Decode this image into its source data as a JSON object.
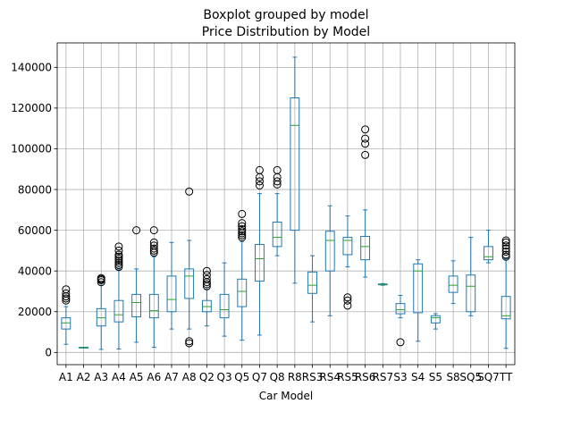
{
  "chart_data": {
    "type": "boxplot",
    "title": "Boxplot grouped by model",
    "subtitle": "Price Distribution by Model",
    "xlabel": "Car Model",
    "ylabel": "",
    "ylim": [
      -6000,
      152000
    ],
    "yticks": [
      0,
      20000,
      40000,
      60000,
      80000,
      100000,
      120000,
      140000
    ],
    "ytick_labels": [
      "0",
      "20000",
      "40000",
      "60000",
      "80000",
      "100000",
      "120000",
      "140000"
    ],
    "grid": true,
    "colors": {
      "box": "#1f77b4",
      "median": "#2ca02c",
      "grid": "#b0b0b0"
    },
    "categories": [
      "A1",
      "A2",
      "A3",
      "A4",
      "A5",
      "A6",
      "A7",
      "A8",
      "Q2",
      "Q3",
      "Q5",
      "Q7",
      "Q8",
      "R8",
      "RS3",
      "RS4",
      "RS5",
      "RS6",
      "RS7",
      "S3",
      "S4",
      "S5",
      "S8",
      "SQ5",
      "SQ7",
      "TT"
    ],
    "boxes": [
      {
        "label": "A1",
        "whislo": 4000,
        "q1": 11500,
        "med": 14500,
        "q3": 17000,
        "whishi": 22500,
        "fliers": [
          25500,
          26500,
          27500,
          29000,
          31000
        ]
      },
      {
        "label": "A2",
        "whislo": 2400,
        "q1": 2450,
        "med": 2490,
        "q3": 2500,
        "whishi": 2550,
        "fliers": []
      },
      {
        "label": "A3",
        "whislo": 1500,
        "q1": 13000,
        "med": 17000,
        "q3": 21500,
        "whishi": 33000,
        "fliers": [
          34500,
          35500,
          36000,
          36500
        ]
      },
      {
        "label": "A4",
        "whislo": 1700,
        "q1": 15000,
        "med": 18500,
        "q3": 25500,
        "whishi": 41000,
        "fliers": [
          42000,
          43000,
          44000,
          45000,
          46000,
          47000,
          48000,
          50000,
          52000
        ]
      },
      {
        "label": "A5",
        "whislo": 5000,
        "q1": 17500,
        "med": 24500,
        "q3": 28500,
        "whishi": 41000,
        "fliers": [
          60000
        ]
      },
      {
        "label": "A6",
        "whislo": 2500,
        "q1": 17000,
        "med": 20500,
        "q3": 28500,
        "whishi": 47000,
        "fliers": [
          49000,
          50000,
          51000,
          52500,
          54000,
          60000
        ]
      },
      {
        "label": "A7",
        "whislo": 11500,
        "q1": 20000,
        "med": 26000,
        "q3": 37500,
        "whishi": 54000,
        "fliers": []
      },
      {
        "label": "A8",
        "whislo": 11500,
        "q1": 26500,
        "med": 37500,
        "q3": 41000,
        "whishi": 55000,
        "fliers": [
          4500,
          5500,
          79000
        ]
      },
      {
        "label": "Q2",
        "whislo": 13000,
        "q1": 20000,
        "med": 22500,
        "q3": 25500,
        "whishi": 31000,
        "fliers": [
          32500,
          33500,
          34500,
          36000,
          38000,
          40000
        ]
      },
      {
        "label": "Q3",
        "whislo": 8000,
        "q1": 17000,
        "med": 21000,
        "q3": 28500,
        "whishi": 44000,
        "fliers": []
      },
      {
        "label": "Q5",
        "whislo": 6000,
        "q1": 22500,
        "med": 30000,
        "q3": 36000,
        "whishi": 54500,
        "fliers": [
          56500,
          57500,
          58500,
          59500,
          60500,
          62000,
          63500,
          68000
        ]
      },
      {
        "label": "Q7",
        "whislo": 8500,
        "q1": 35000,
        "med": 46000,
        "q3": 53000,
        "whishi": 78000,
        "fliers": [
          82000,
          84000,
          86000,
          89500
        ]
      },
      {
        "label": "Q8",
        "whislo": 47500,
        "q1": 52000,
        "med": 56500,
        "q3": 64000,
        "whishi": 78000,
        "fliers": [
          82500,
          84000,
          86000,
          89500
        ]
      },
      {
        "label": "R8",
        "whislo": 34000,
        "q1": 60000,
        "med": 111500,
        "q3": 125000,
        "whishi": 145000,
        "fliers": []
      },
      {
        "label": "RS3",
        "whislo": 15000,
        "q1": 29000,
        "med": 33000,
        "q3": 39500,
        "whishi": 47500,
        "fliers": []
      },
      {
        "label": "RS4",
        "whislo": 18000,
        "q1": 40000,
        "med": 55000,
        "q3": 59500,
        "whishi": 72000,
        "fliers": []
      },
      {
        "label": "RS5",
        "whislo": 42000,
        "q1": 48000,
        "med": 55000,
        "q3": 56500,
        "whishi": 67000,
        "fliers": [
          23000,
          25500,
          27000
        ]
      },
      {
        "label": "RS6",
        "whislo": 37000,
        "q1": 45500,
        "med": 52000,
        "q3": 57000,
        "whishi": 70000,
        "fliers": [
          97000,
          102500,
          105000,
          109500
        ]
      },
      {
        "label": "RS7",
        "whislo": 33000,
        "q1": 33200,
        "med": 33400,
        "q3": 33600,
        "whishi": 33800,
        "fliers": []
      },
      {
        "label": "S3",
        "whislo": 17000,
        "q1": 19000,
        "med": 21000,
        "q3": 24000,
        "whishi": 28000,
        "fliers": [
          5000
        ]
      },
      {
        "label": "S4",
        "whislo": 5500,
        "q1": 19500,
        "med": 40000,
        "q3": 43500,
        "whishi": 45500,
        "fliers": []
      },
      {
        "label": "S5",
        "whislo": 11500,
        "q1": 14500,
        "med": 17000,
        "q3": 18000,
        "whishi": 19000,
        "fliers": []
      },
      {
        "label": "S8",
        "whislo": 24000,
        "q1": 29500,
        "med": 33000,
        "q3": 37500,
        "whishi": 45000,
        "fliers": []
      },
      {
        "label": "SQ5",
        "whislo": 18000,
        "q1": 20000,
        "med": 32500,
        "q3": 38000,
        "whishi": 56500,
        "fliers": []
      },
      {
        "label": "SQ7",
        "whislo": 44000,
        "q1": 45500,
        "med": 47000,
        "q3": 52000,
        "whishi": 60000,
        "fliers": []
      },
      {
        "label": "TT",
        "whislo": 2000,
        "q1": 16500,
        "med": 18000,
        "q3": 27500,
        "whishi": 46000,
        "fliers": [
          47000,
          48000,
          49500,
          51000,
          52500,
          54000,
          55000
        ]
      }
    ]
  }
}
